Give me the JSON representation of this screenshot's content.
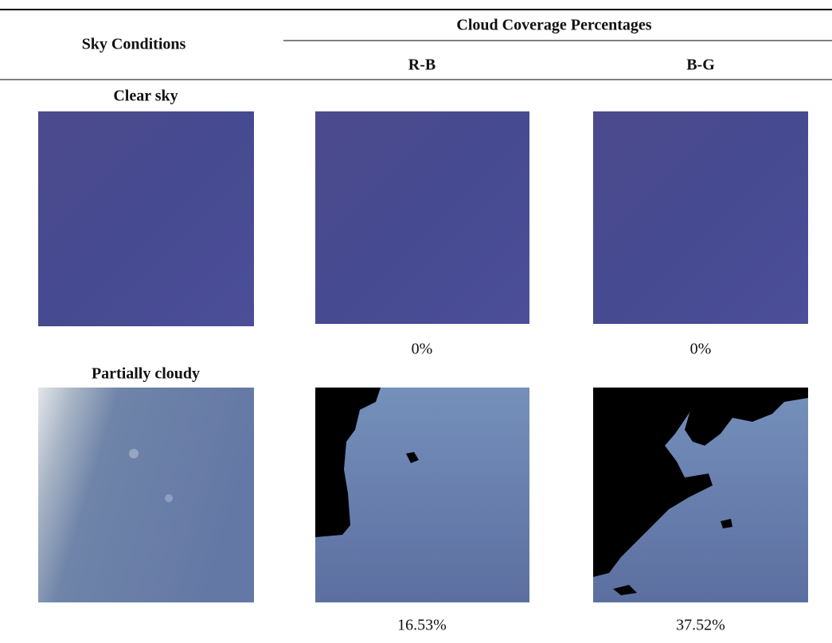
{
  "table": {
    "header": {
      "first_column": "Sky Conditions",
      "group": "Cloud Coverage Percentages",
      "columns": [
        "R-B",
        "B-G"
      ]
    },
    "rows": [
      {
        "label": "Clear sky",
        "values": [
          "0%",
          "0%"
        ]
      },
      {
        "label": "Partially cloudy",
        "values": [
          "16.53%",
          "37.52%"
        ]
      }
    ]
  }
}
